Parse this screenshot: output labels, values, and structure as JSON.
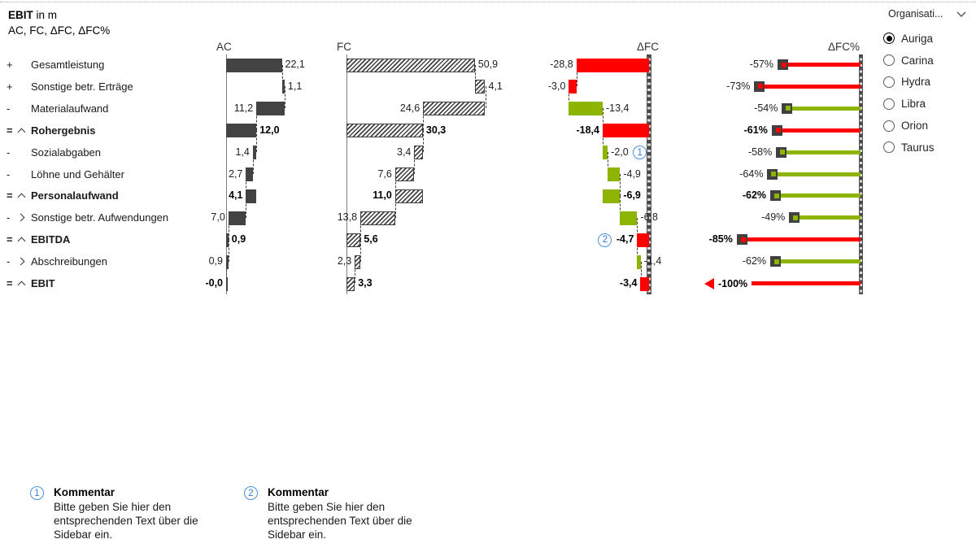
{
  "title": {
    "metric": "EBIT",
    "unit": " in m",
    "subtitle": "AC, FC, ΔFC, ΔFC%"
  },
  "column_labels": {
    "ac": "AC",
    "fc": "FC",
    "dfc": "ΔFC",
    "pct": "ΔFC%"
  },
  "colors": {
    "bar_dark": "#434343",
    "red": "#ff0000",
    "green": "#8cb400",
    "marker_blue": "#4a90dc"
  },
  "chart_data": {
    "type": "waterfall-comparison",
    "columns": [
      "AC",
      "FC",
      "ΔFC",
      "ΔFC%"
    ],
    "value_unit": "m",
    "rows": [
      {
        "op": "+",
        "chevron": null,
        "role": "add",
        "bold": false,
        "label": "Gesamtleistung",
        "color": "red",
        "ac": 22.1,
        "ac_text": "22,1",
        "fc": 50.9,
        "fc_text": "50,9",
        "dfc": -28.8,
        "dfc_text": "-28,8",
        "pct": -57,
        "pct_text": "-57%"
      },
      {
        "op": "+",
        "chevron": null,
        "role": "add",
        "bold": false,
        "label": "Sonstige betr. Erträge",
        "color": "red",
        "ac": 1.1,
        "ac_text": "1,1",
        "fc": 4.1,
        "fc_text": "4,1",
        "dfc": -3.0,
        "dfc_text": "-3,0",
        "pct": -73,
        "pct_text": "-73%"
      },
      {
        "op": "-",
        "chevron": null,
        "role": "sub",
        "bold": false,
        "label": "Materialaufwand",
        "color": "green",
        "ac": 11.2,
        "ac_text": "11,2",
        "fc": 24.6,
        "fc_text": "24,6",
        "dfc": -13.4,
        "dfc_text": "-13,4",
        "pct": -54,
        "pct_text": "-54%"
      },
      {
        "op": "=",
        "chevron": "up",
        "role": "total",
        "bold": true,
        "label": "Rohergebnis",
        "color": "red",
        "ac": 12.0,
        "ac_text": "12,0",
        "fc": 30.3,
        "fc_text": "30,3",
        "dfc": -18.4,
        "dfc_text": "-18,4",
        "pct": -61,
        "pct_text": "-61%"
      },
      {
        "op": "-",
        "chevron": null,
        "role": "sub",
        "bold": false,
        "label": "Sozialabgaben",
        "color": "green",
        "ac": 1.4,
        "ac_text": "1,4",
        "fc": 3.4,
        "fc_text": "3,4",
        "dfc": -2.0,
        "dfc_text": "-2,0",
        "pct": -58,
        "pct_text": "-58%",
        "marker": {
          "num": "1",
          "pos": "after"
        }
      },
      {
        "op": "-",
        "chevron": null,
        "role": "sub",
        "bold": false,
        "label": "Löhne und Gehälter",
        "color": "green",
        "ac": 2.7,
        "ac_text": "2,7",
        "fc": 7.6,
        "fc_text": "7,6",
        "dfc": -4.9,
        "dfc_text": "-4,9",
        "pct": -64,
        "pct_text": "-64%"
      },
      {
        "op": "=",
        "chevron": "up",
        "role": "span",
        "bold": true,
        "label": "Personalaufwand",
        "color": "green",
        "ac": 4.1,
        "ac_text": "4,1",
        "fc": 11.0,
        "fc_text": "11,0",
        "dfc": -6.9,
        "dfc_text": "-6,9",
        "pct": -62,
        "pct_text": "-62%"
      },
      {
        "op": "-",
        "chevron": "right",
        "role": "sub",
        "bold": false,
        "label": "Sonstige betr. Aufwendungen",
        "color": "green",
        "ac": 7.0,
        "ac_text": "7,0",
        "fc": 13.8,
        "fc_text": "13,8",
        "dfc": -6.8,
        "dfc_text": "-6,8",
        "pct": -49,
        "pct_text": "-49%"
      },
      {
        "op": "=",
        "chevron": "up",
        "role": "total",
        "bold": true,
        "label": "EBITDA",
        "color": "red",
        "ac": 0.9,
        "ac_text": "0,9",
        "fc": 5.6,
        "fc_text": "5,6",
        "dfc": -4.7,
        "dfc_text": "-4,7",
        "pct": -85,
        "pct_text": "-85%",
        "marker": {
          "num": "2",
          "pos": "before"
        }
      },
      {
        "op": "-",
        "chevron": "right",
        "role": "sub",
        "bold": false,
        "label": "Abschreibungen",
        "color": "green",
        "ac": 0.9,
        "ac_text": "0,9",
        "fc": 2.3,
        "fc_text": "2,3",
        "dfc": -1.4,
        "dfc_text": "-1,4",
        "pct": -62,
        "pct_text": "-62%"
      },
      {
        "op": "=",
        "chevron": "up",
        "role": "total",
        "bold": true,
        "label": "EBIT",
        "color": "red",
        "ac": -0.0,
        "ac_text": "-0,0",
        "fc": 3.3,
        "fc_text": "3,3",
        "dfc": -3.4,
        "dfc_text": "-3,4",
        "pct": -100,
        "pct_text": "-100%",
        "pct_arrow": true
      }
    ]
  },
  "slicer": {
    "title": "Organisati...",
    "items": [
      {
        "label": "Auriga",
        "selected": true
      },
      {
        "label": "Carina",
        "selected": false
      },
      {
        "label": "Hydra",
        "selected": false
      },
      {
        "label": "Libra",
        "selected": false
      },
      {
        "label": "Orion",
        "selected": false
      },
      {
        "label": "Taurus",
        "selected": false
      }
    ]
  },
  "comments": [
    {
      "num": "1",
      "title": "Kommentar",
      "body": "Bitte geben Sie hier den entsprechenden Text über die Sidebar ein."
    },
    {
      "num": "2",
      "title": "Kommentar",
      "body": "Bitte geben Sie hier den entsprechenden Text über die Sidebar ein."
    }
  ]
}
